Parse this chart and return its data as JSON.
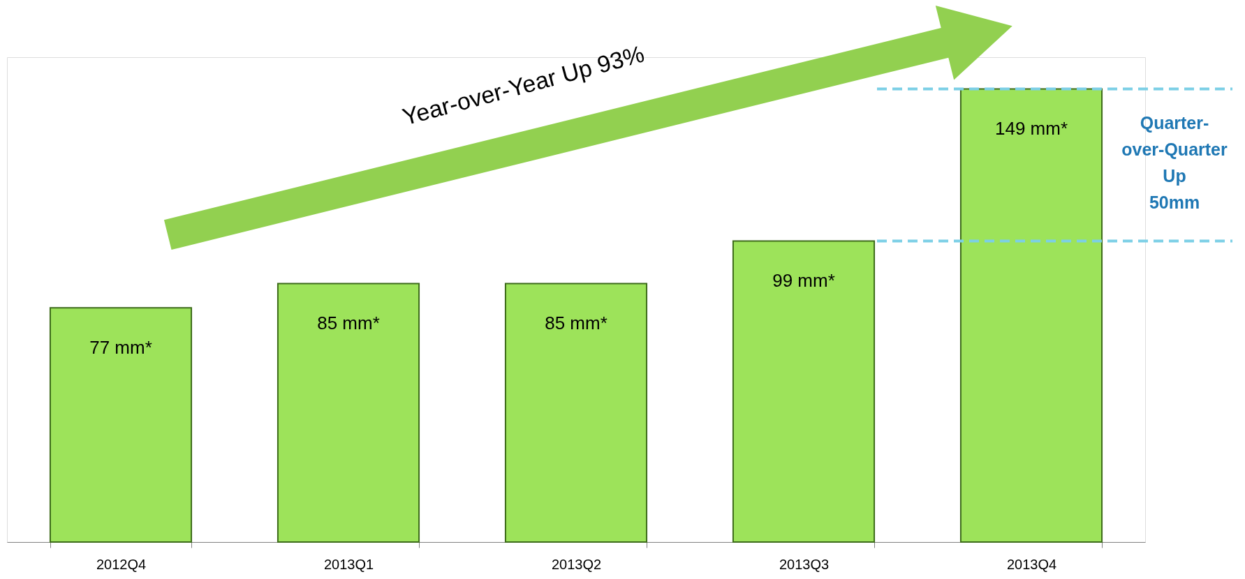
{
  "chart_data": {
    "type": "bar",
    "categories": [
      "2012Q4",
      "2013Q1",
      "2013Q2",
      "2013Q3",
      "2013Q4"
    ],
    "values": [
      77,
      85,
      85,
      99,
      149
    ],
    "color": "#9de35a",
    "value_labels": [
      "77 mm*",
      "85 mm*",
      "85 mm*",
      "99 mm*",
      "149 mm*"
    ],
    "annotations": [
      "Year-over-Year Up 93%",
      "Quarter-\nover-Quarter\nUp\n50mm"
    ],
    "ref_lines": [
      {
        "axis": "y",
        "value": 99,
        "color": "#7ccfe6",
        "line_style": "dashed"
      },
      {
        "axis": "y",
        "value": 149,
        "color": "#7ccfe6",
        "line_style": "dashed"
      }
    ],
    "grid": false
  }
}
